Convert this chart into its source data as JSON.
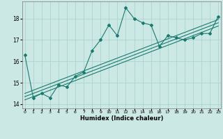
{
  "xlabel": "Humidex (Indice chaleur)",
  "bg_color": "#cce8e5",
  "grid_color": "#aad4d0",
  "line_color": "#1a7a6e",
  "x_data": [
    0,
    1,
    2,
    3,
    4,
    5,
    6,
    7,
    8,
    9,
    10,
    11,
    12,
    13,
    14,
    15,
    16,
    17,
    18,
    19,
    20,
    21,
    22,
    23
  ],
  "y_main": [
    16.3,
    14.3,
    14.5,
    14.3,
    14.9,
    14.8,
    15.3,
    15.5,
    16.5,
    17.0,
    17.7,
    17.2,
    18.5,
    18.0,
    17.8,
    17.7,
    16.7,
    17.2,
    17.1,
    17.0,
    17.1,
    17.3,
    17.3,
    18.1
  ],
  "y_trend1": [
    14.2,
    14.35,
    14.5,
    14.65,
    14.8,
    14.95,
    15.1,
    15.25,
    15.4,
    15.55,
    15.7,
    15.85,
    16.0,
    16.15,
    16.3,
    16.45,
    16.6,
    16.75,
    16.9,
    17.05,
    17.2,
    17.35,
    17.5,
    17.65
  ],
  "y_trend2": [
    14.35,
    14.5,
    14.65,
    14.8,
    14.95,
    15.1,
    15.25,
    15.4,
    15.55,
    15.7,
    15.85,
    16.0,
    16.15,
    16.3,
    16.45,
    16.6,
    16.75,
    16.9,
    17.05,
    17.2,
    17.35,
    17.5,
    17.65,
    17.8
  ],
  "y_trend3": [
    14.5,
    14.65,
    14.8,
    14.95,
    15.1,
    15.25,
    15.4,
    15.55,
    15.7,
    15.85,
    16.0,
    16.15,
    16.3,
    16.45,
    16.6,
    16.75,
    16.9,
    17.05,
    17.2,
    17.35,
    17.5,
    17.65,
    17.8,
    17.95
  ],
  "ylim": [
    13.8,
    18.8
  ],
  "yticks": [
    14,
    15,
    16,
    17,
    18
  ],
  "xlim": [
    -0.3,
    23.3
  ],
  "xticks": [
    0,
    1,
    2,
    3,
    4,
    5,
    6,
    7,
    8,
    9,
    10,
    11,
    12,
    13,
    14,
    15,
    16,
    17,
    18,
    19,
    20,
    21,
    22,
    23
  ]
}
